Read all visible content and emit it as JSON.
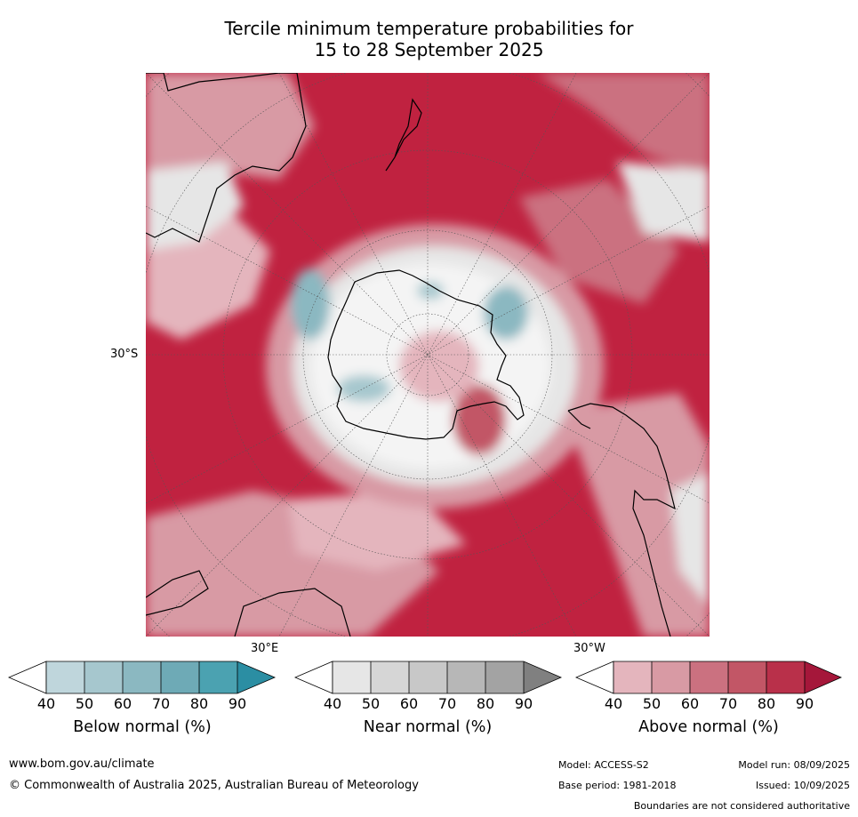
{
  "title": {
    "line1": "Tercile minimum temperature probabilities for",
    "line2": "15 to 28 September 2025"
  },
  "map": {
    "lat_label": "30°S",
    "lon_label_east": "30°E",
    "lon_label_west": "30°W"
  },
  "colorbars": [
    {
      "label": "Below normal (%)",
      "ticks": [
        "40",
        "50",
        "60",
        "70",
        "80",
        "90"
      ],
      "colors": [
        "#bfd6dc",
        "#a6c7ce",
        "#8bb8c1",
        "#6eaab6",
        "#4ba2b1",
        "#2b8ea3"
      ]
    },
    {
      "label": "Near normal (%)",
      "ticks": [
        "40",
        "50",
        "60",
        "70",
        "80",
        "90"
      ],
      "colors": [
        "#e6e6e6",
        "#d6d6d6",
        "#c8c8c8",
        "#b7b7b7",
        "#a3a3a3",
        "#808080"
      ]
    },
    {
      "label": "Above normal (%)",
      "ticks": [
        "40",
        "50",
        "60",
        "70",
        "80",
        "90"
      ],
      "colors": [
        "#e4b5bd",
        "#d89aa4",
        "#cb7180",
        "#c25666",
        "#b9304a",
        "#a5173a"
      ]
    }
  ],
  "footer": {
    "website": "www.bom.gov.au/climate",
    "copyright": "© Commonwealth of Australia 2025, Australian Bureau of Meteorology",
    "model": "Model: ACCESS-S2",
    "model_run": "Model run: 08/09/2025",
    "base_period": "Base period: 1981-2018",
    "issued": "Issued: 10/09/2025",
    "disclaimer": "Boundaries are not considered authoritative"
  }
}
